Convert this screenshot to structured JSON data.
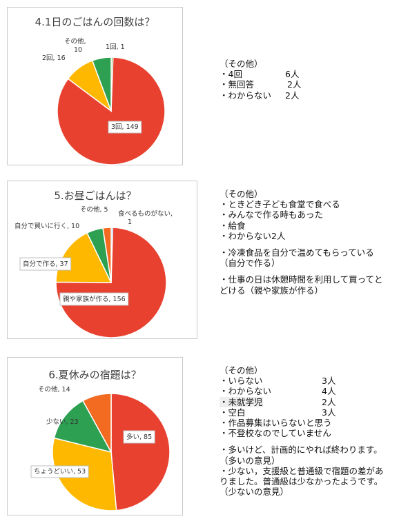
{
  "charts": [
    {
      "title": "4.1日のごはんの回数は？",
      "chart_data": {
        "type": "pie",
        "title": "4.1日のごはんの回数は？",
        "categories": [
          "1回",
          "3回",
          "2回",
          "その他"
        ],
        "values": [
          1,
          149,
          16,
          10
        ],
        "labels": [
          "1回, 1",
          "3回, 149",
          "2回, 16",
          "その他,\n10"
        ],
        "colors": [
          "#70AD47",
          "#E8412F",
          "#FFB800",
          "#2EA052"
        ],
        "legend": "none"
      }
    },
    {
      "title": "5.お昼ごはんは？",
      "chart_data": {
        "type": "pie",
        "title": "5.お昼ごはんは？",
        "categories": [
          "食べるものがない",
          "親や家族が作る",
          "自分で作る",
          "自分で買いに行く",
          "その他"
        ],
        "values": [
          1,
          156,
          37,
          10,
          5
        ],
        "labels": [
          "食べるものがない,\n1",
          "親や家族が作る, 156",
          "自分で作る, 37",
          "自分で買いに行く, 10",
          "その他, 5"
        ],
        "colors": [
          "#5B9BD5",
          "#E8412F",
          "#FFB800",
          "#2EA052",
          "#F26B21"
        ],
        "legend": "none"
      }
    },
    {
      "title": "6.夏休みの宿題は？",
      "chart_data": {
        "type": "pie",
        "title": "6.夏休みの宿題は？",
        "categories": [
          "多い",
          "ちょうどいい",
          "少ない",
          "その他"
        ],
        "values": [
          85,
          53,
          23,
          14
        ],
        "labels": [
          "多い, 85",
          "ちょうどいい, 53",
          "少ない, 23",
          "その他, 14"
        ],
        "colors": [
          "#E8412F",
          "#FFB800",
          "#2EA052",
          "#F26B21"
        ],
        "legend": "none"
      }
    }
  ],
  "notes": [
    {
      "header": "（その他）",
      "items": [
        {
          "text": "・4回",
          "count": "6人"
        },
        {
          "text": "・無回答",
          "count": "2人"
        },
        {
          "text": "・わからない",
          "count": "2人"
        }
      ]
    },
    {
      "header": "（その他）",
      "lines": [
        "・ときどき子ども食堂で食べる",
        "・みんなで作る時もあった",
        "・給食",
        "・わからない2人",
        "",
        "・冷凍食品を自分で温めてもらっている",
        "（自分で作る）",
        "",
        "・仕事の日は休憩時間を利用して買ってと",
        "どける（親や家族が作る）"
      ]
    },
    {
      "header": "（その他）",
      "items": [
        {
          "text": "・いらない",
          "count": "3人"
        },
        {
          "text": "・わからない",
          "count": "4人"
        },
        {
          "text": "・未就学児",
          "count": "2人"
        },
        {
          "text": "・空白",
          "count": "3人"
        }
      ],
      "lines": [
        "・作品募集はいらないと思う",
        "・不登校なのでしていません",
        "",
        "・多いけど、計画的にやれば終わります。",
        "（多いの意見）",
        "・少ない，支援級と普通級で宿題の差がありました。普通級は少なかったようです。",
        "（少ないの意見）"
      ]
    }
  ]
}
